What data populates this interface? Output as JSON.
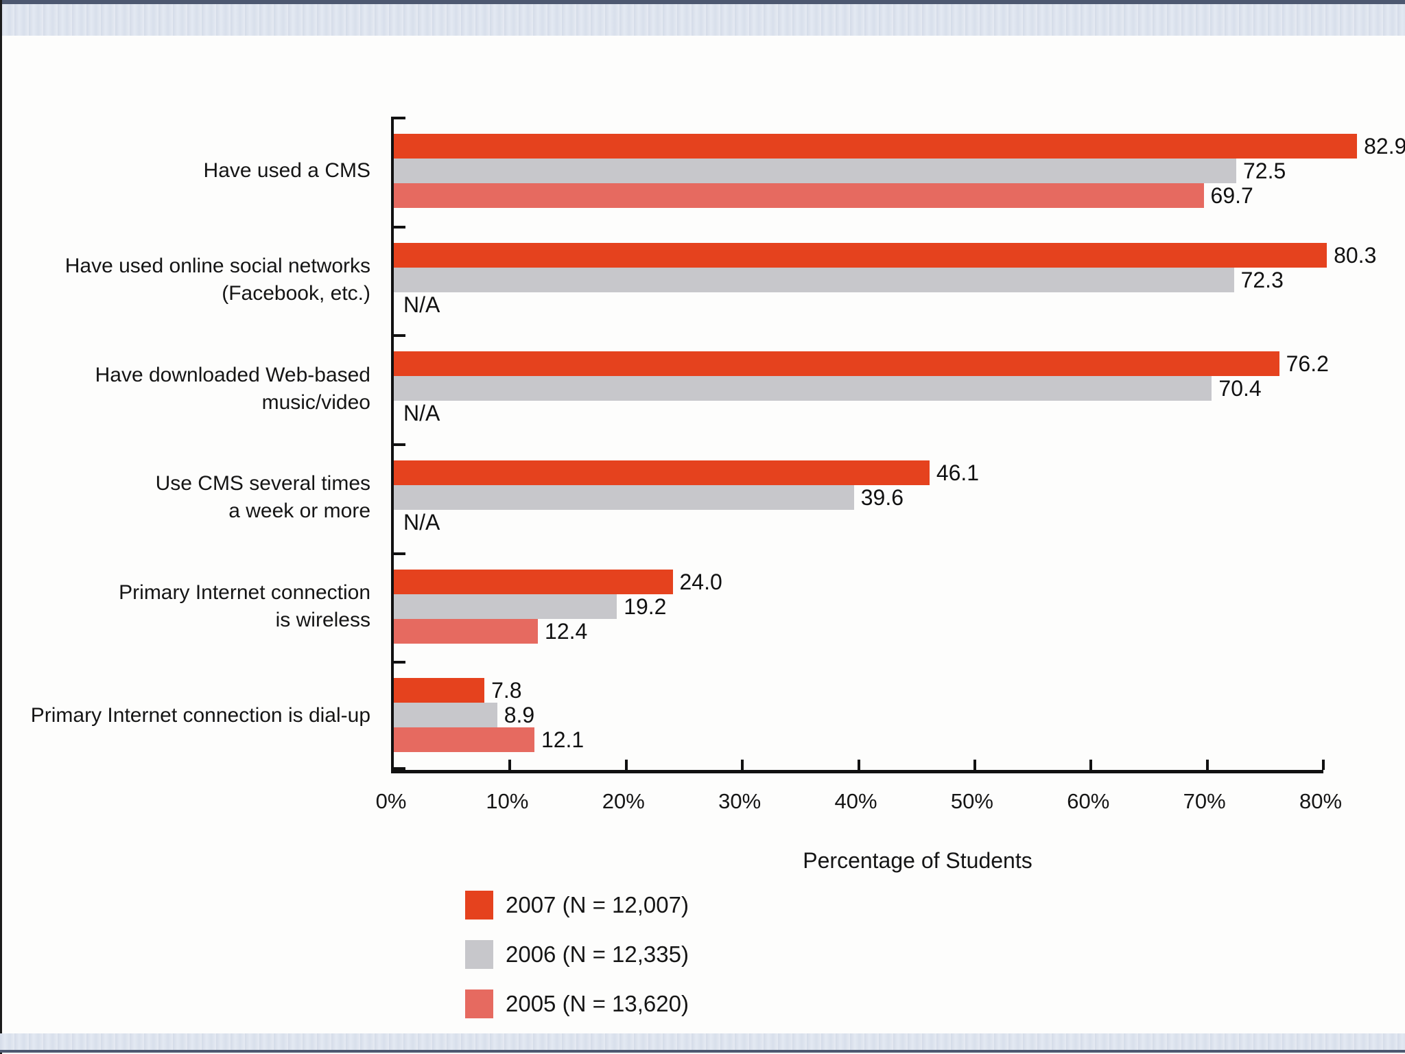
{
  "chart_data": {
    "type": "bar",
    "orientation": "horizontal",
    "xlabel": "Percentage of Students",
    "xlim": [
      0,
      80
    ],
    "x_tick_labels": [
      "0%",
      "10%",
      "20%",
      "30%",
      "40%",
      "50%",
      "60%",
      "70%",
      "80%"
    ],
    "grid": false,
    "na_label": "N/A",
    "categories": [
      {
        "lines": [
          "Have used a CMS"
        ]
      },
      {
        "lines": [
          "Have used online social networks",
          "(Facebook, etc.)"
        ]
      },
      {
        "lines": [
          "Have downloaded Web-based",
          "music/video"
        ]
      },
      {
        "lines": [
          "Use CMS several times",
          "a week or more"
        ]
      },
      {
        "lines": [
          "Primary Internet connection",
          "is wireless"
        ]
      },
      {
        "lines": [
          "Primary Internet connection is dial-up"
        ]
      }
    ],
    "series": [
      {
        "name": "2007 (N = 12,007)",
        "color": "#e5421e",
        "values": [
          82.9,
          80.3,
          76.2,
          46.1,
          24.0,
          7.8
        ],
        "labels": [
          "82.9",
          "80.3",
          "76.2",
          "46.1",
          "24.0",
          "7.8"
        ]
      },
      {
        "name": "2006 (N = 12,335)",
        "color": "#c7c7cb",
        "values": [
          72.5,
          72.3,
          70.4,
          39.6,
          19.2,
          8.9
        ],
        "labels": [
          "72.5",
          "72.3",
          "70.4",
          "39.6",
          "19.2",
          "8.9"
        ]
      },
      {
        "name": "2005 (N = 13,620)",
        "color": "#e66a60",
        "values": [
          69.7,
          null,
          null,
          null,
          12.4,
          12.1
        ],
        "labels": [
          "69.7",
          null,
          null,
          null,
          "12.4",
          "12.1"
        ]
      }
    ],
    "legend_position": "bottom-left"
  },
  "frame": {
    "band_color": "#dce3ee",
    "band_edge_color": "#4d5870",
    "axis_color": "#111111",
    "text_color": "#151515",
    "background": "#fdfdfc"
  }
}
